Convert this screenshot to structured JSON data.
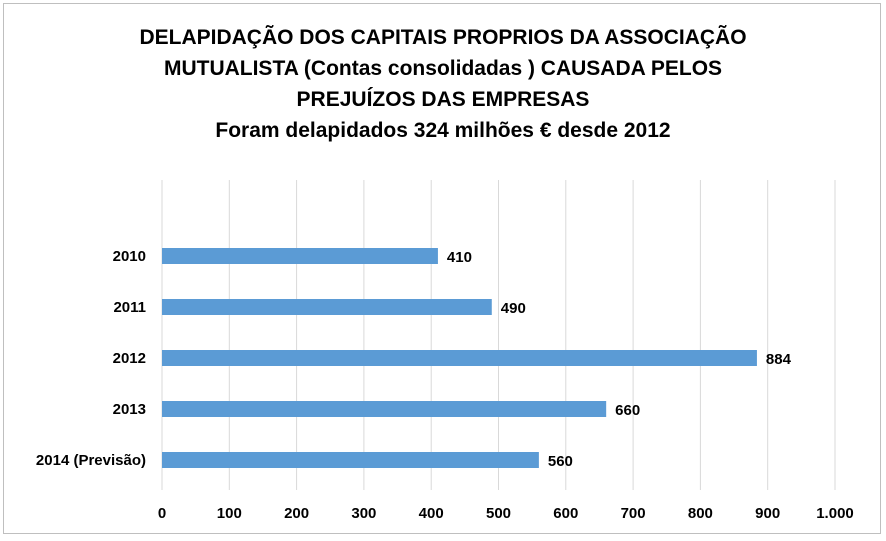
{
  "chart_data": {
    "type": "bar",
    "orientation": "horizontal",
    "title_lines": [
      "DELAPIDAÇÃO DOS CAPITAIS PROPRIOS DA ASSOCIAÇÃO",
      "MUTUALISTA (Contas consolidadas ) CAUSADA PELOS",
      "PREJUÍZOS DAS EMPRESAS",
      "Foram delapidados 324  milhões € desde 2012"
    ],
    "categories": [
      "2010",
      "2011",
      "2012",
      "2013",
      "2014 (Previsão)"
    ],
    "values": [
      410,
      490,
      884,
      660,
      560
    ],
    "data_labels": [
      "410",
      "490",
      "884",
      "660",
      "560"
    ],
    "xlim": [
      0,
      1000
    ],
    "x_ticks": [
      0,
      100,
      200,
      300,
      400,
      500,
      600,
      700,
      800,
      900,
      1000
    ],
    "x_tick_labels": [
      "0",
      "100",
      "200",
      "300",
      "400",
      "500",
      "600",
      "700",
      "800",
      "900",
      "1.000"
    ],
    "grid": "vertical",
    "legend": "none",
    "bar_color": "#5b9bd5",
    "grid_color": "#d9d9d9"
  }
}
